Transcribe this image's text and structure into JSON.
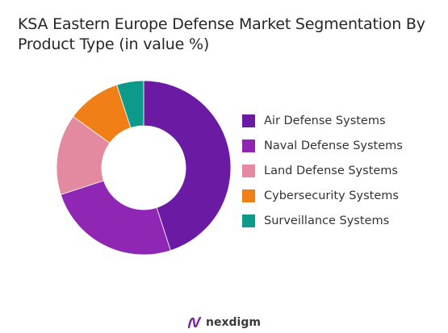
{
  "title": "KSA Eastern Europe Defense Market Segmentation By Product Type (in value %)",
  "brand": {
    "name": "nexdigm",
    "logo_icon": "nexdigm-logo-icon"
  },
  "chart_data": {
    "type": "pie",
    "variant": "donut",
    "legend_position": "right",
    "series": [
      {
        "name": "Air Defense Systems",
        "value": 45,
        "color": "#6a1aa3"
      },
      {
        "name": "Naval Defense Systems",
        "value": 25,
        "color": "#8f27b4"
      },
      {
        "name": "Land Defense Systems",
        "value": 15,
        "color": "#e38aa0"
      },
      {
        "name": "Cybersecurity Systems",
        "value": 10,
        "color": "#f07f17"
      },
      {
        "name": "Surveillance Systems",
        "value": 5,
        "color": "#0e9a8b"
      }
    ]
  }
}
